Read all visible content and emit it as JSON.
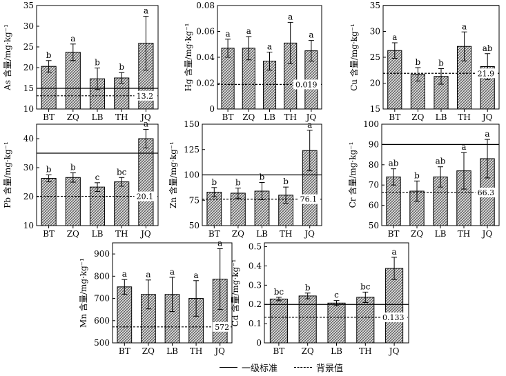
{
  "legend": {
    "standard_label": "一级标准",
    "background_label": "背景值"
  },
  "chart_data": [
    {
      "type": "bar",
      "ylabel": "As 含量/mg·kg⁻¹",
      "categories": [
        "BT",
        "ZQ",
        "LB",
        "TH",
        "JQ"
      ],
      "values": [
        20.3,
        23.7,
        17.3,
        17.5,
        25.9
      ],
      "errors": [
        1.4,
        2.0,
        2.6,
        1.3,
        6.5
      ],
      "sig_labels": [
        "b",
        "a",
        "b",
        "b",
        "a"
      ],
      "ylim": [
        10,
        35
      ],
      "yticks": [
        10,
        15,
        20,
        25,
        30,
        35
      ],
      "standard": 15,
      "background": 13.2,
      "background_label": "13.2"
    },
    {
      "type": "bar",
      "ylabel": "Hg 含量/mg·kg⁻¹",
      "categories": [
        "BT",
        "ZQ",
        "LB",
        "TH",
        "JQ"
      ],
      "values": [
        0.047,
        0.047,
        0.037,
        0.051,
        0.045
      ],
      "errors": [
        0.007,
        0.009,
        0.007,
        0.016,
        0.008
      ],
      "sig_labels": [
        "a",
        "a",
        "a",
        "a",
        "a"
      ],
      "ylim": [
        0,
        0.08
      ],
      "yticks": [
        0,
        0.02,
        0.04,
        0.06,
        0.08
      ],
      "ytick_labels": [
        "0",
        "0.02",
        "0.04",
        "0.06",
        "0.08"
      ],
      "standard": null,
      "background": 0.019,
      "background_label": "0.019"
    },
    {
      "type": "bar",
      "ylabel": "Cu 含量/mg·kg⁻¹",
      "categories": [
        "BT",
        "ZQ",
        "LB",
        "TH",
        "JQ"
      ],
      "values": [
        26.3,
        21.7,
        21.3,
        27.1,
        23.2
      ],
      "errors": [
        1.5,
        1.3,
        1.5,
        2.8,
        2.5
      ],
      "sig_labels": [
        "a",
        "b",
        "b",
        "a",
        "ab"
      ],
      "ylim": [
        15,
        35
      ],
      "yticks": [
        15,
        20,
        25,
        30,
        35
      ],
      "standard": 35,
      "background": 21.9,
      "background_label": "21.9"
    },
    {
      "type": "bar",
      "ylabel": "Pb 含量/mg·kg⁻¹",
      "categories": [
        "BT",
        "ZQ",
        "LB",
        "TH",
        "JQ"
      ],
      "values": [
        26.3,
        26.6,
        23.3,
        25.1,
        40.0
      ],
      "errors": [
        1.2,
        1.6,
        1.5,
        1.5,
        3.2
      ],
      "sig_labels": [
        "b",
        "b",
        "c",
        "bc",
        "a"
      ],
      "ylim": [
        10,
        45
      ],
      "yticks": [
        10,
        20,
        30,
        40
      ],
      "standard": 35,
      "background": 20.1,
      "background_label": "20.1"
    },
    {
      "type": "bar",
      "ylabel": "Zn 含量/mg·kg⁻¹",
      "categories": [
        "BT",
        "ZQ",
        "LB",
        "TH",
        "JQ"
      ],
      "values": [
        83.0,
        82.0,
        84.0,
        80.0,
        124.0
      ],
      "errors": [
        4.5,
        5.0,
        8.5,
        8.0,
        20.0
      ],
      "sig_labels": [
        "b",
        "b",
        "b",
        "b",
        "a"
      ],
      "ylim": [
        50,
        150
      ],
      "yticks": [
        50,
        75,
        100,
        125,
        150
      ],
      "standard": 100,
      "background": 76.1,
      "background_label": "76.1"
    },
    {
      "type": "bar",
      "ylabel": "Cr 含量/mg·kg⁻¹",
      "categories": [
        "BT",
        "ZQ",
        "LB",
        "TH",
        "JQ"
      ],
      "values": [
        74.0,
        67.0,
        74.0,
        77.0,
        83.0
      ],
      "errors": [
        4.0,
        5.0,
        5.0,
        9.0,
        9.5
      ],
      "sig_labels": [
        "ab",
        "b",
        "ab",
        "a",
        "a"
      ],
      "ylim": [
        50,
        100
      ],
      "yticks": [
        50,
        60,
        70,
        80,
        90,
        100
      ],
      "standard": 90,
      "background": 66.3,
      "background_label": "66.3"
    },
    {
      "type": "bar",
      "ylabel": "Mn 含量/mg·kg⁻¹",
      "categories": [
        "BT",
        "ZQ",
        "LB",
        "TH",
        "JQ"
      ],
      "values": [
        752,
        718,
        718,
        700,
        787
      ],
      "errors": [
        33,
        65,
        77,
        80,
        137
      ],
      "sig_labels": [
        "a",
        "a",
        "a",
        "a",
        "a"
      ],
      "ylim": [
        500,
        950
      ],
      "yticks": [
        500,
        600,
        700,
        800,
        900
      ],
      "standard": null,
      "background": 572,
      "background_label": "572"
    },
    {
      "type": "bar",
      "ylabel": "Cd 含量/mg·kg⁻¹",
      "categories": [
        "BT",
        "ZQ",
        "LB",
        "TH",
        "JQ"
      ],
      "values": [
        0.228,
        0.244,
        0.207,
        0.237,
        0.387
      ],
      "errors": [
        0.009,
        0.015,
        0.013,
        0.027,
        0.058
      ],
      "sig_labels": [
        "bc",
        "b",
        "c",
        "bc",
        "a"
      ],
      "ylim": [
        0,
        0.52
      ],
      "yticks": [
        0,
        0.1,
        0.2,
        0.3,
        0.4,
        0.5
      ],
      "ytick_labels": [
        "0",
        "0.1",
        "0.2",
        "0.3",
        "0.4",
        "0.5"
      ],
      "standard": 0.2,
      "background": 0.133,
      "background_label": "0.133"
    }
  ]
}
